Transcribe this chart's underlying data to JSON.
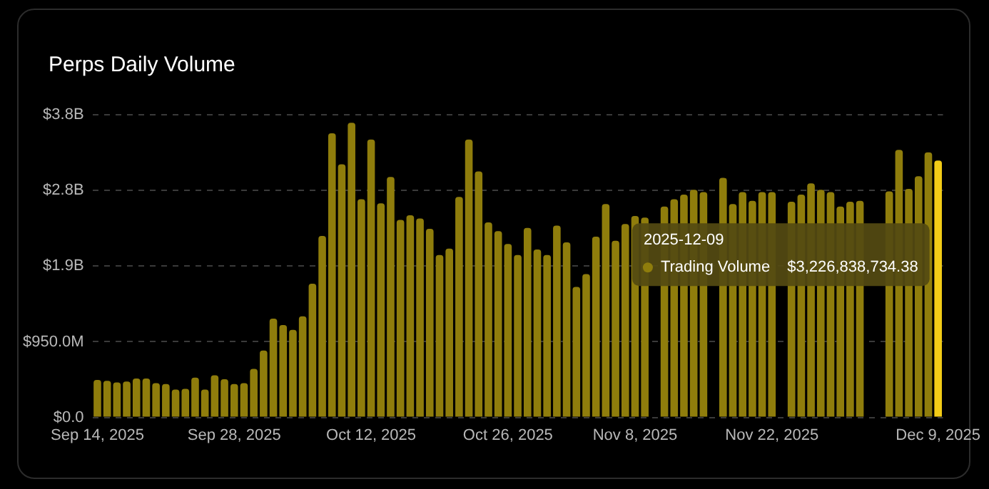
{
  "chart_data": {
    "type": "bar",
    "title": "Perps Daily Volume",
    "categories": [
      "Sep 14, 2025",
      null,
      null,
      null,
      null,
      null,
      null,
      null,
      null,
      null,
      null,
      null,
      null,
      null,
      "Sep 28, 2025",
      null,
      null,
      null,
      null,
      null,
      null,
      null,
      null,
      null,
      null,
      null,
      null,
      null,
      "Oct 12, 2025",
      null,
      null,
      null,
      null,
      null,
      null,
      null,
      null,
      null,
      null,
      null,
      null,
      null,
      "Oct 26, 2025",
      null,
      null,
      null,
      null,
      null,
      null,
      null,
      null,
      null,
      null,
      null,
      null,
      "Nov 8, 2025",
      null,
      null,
      null,
      null,
      null,
      null,
      null,
      null,
      null,
      null,
      null,
      null,
      null,
      "Nov 22, 2025",
      null,
      null,
      null,
      null,
      null,
      null,
      null,
      null,
      null,
      null,
      null,
      null,
      null,
      null,
      null,
      null,
      "Dec 9, 2025"
    ],
    "series": [
      {
        "name": "Trading Volume",
        "color": "#8f7d0c",
        "colors": [
          "#8f7d0c",
          "#8f7d0c",
          "#8f7d0c",
          "#8f7d0c",
          "#8f7d0c",
          "#8f7d0c",
          "#8f7d0c",
          "#8f7d0c",
          "#8f7d0c",
          "#8f7d0c",
          "#8f7d0c",
          "#8f7d0c",
          "#8f7d0c",
          "#8f7d0c",
          "#8f7d0c",
          "#8f7d0c",
          "#8f7d0c",
          "#8f7d0c",
          "#8f7d0c",
          "#8f7d0c",
          "#8f7d0c",
          "#8f7d0c",
          "#8f7d0c",
          "#8f7d0c",
          "#8f7d0c",
          "#8f7d0c",
          "#8f7d0c",
          "#8f7d0c",
          "#8f7d0c",
          "#8f7d0c",
          "#8f7d0c",
          "#8f7d0c",
          "#8f7d0c",
          "#8f7d0c",
          "#8f7d0c",
          "#8f7d0c",
          "#8f7d0c",
          "#8f7d0c",
          "#8f7d0c",
          "#8f7d0c",
          "#8f7d0c",
          "#8f7d0c",
          "#8f7d0c",
          "#8f7d0c",
          "#8f7d0c",
          "#8f7d0c",
          "#8f7d0c",
          "#8f7d0c",
          "#8f7d0c",
          "#8f7d0c",
          "#8f7d0c",
          "#8f7d0c",
          "#8f7d0c",
          "#8f7d0c",
          "#8f7d0c",
          "#8f7d0c",
          "#8f7d0c",
          "#8f7d0c",
          "#8f7d0c",
          "#8f7d0c",
          "#8f7d0c",
          "#8f7d0c",
          "#8f7d0c",
          "#8f7d0c",
          "#8f7d0c",
          "#8f7d0c",
          "#8f7d0c",
          "#8f7d0c",
          "#8f7d0c",
          "#8f7d0c",
          "#8f7d0c",
          "#8f7d0c",
          "#8f7d0c",
          "#8f7d0c",
          "#8f7d0c",
          "#8f7d0c",
          "#8f7d0c",
          "#8f7d0c",
          "#8f7d0c",
          "#8f7d0c",
          "#8f7d0c",
          "#8f7d0c",
          "#8f7d0c",
          "#8f7d0c",
          "#8f7d0c",
          "#8f7d0c",
          "#f3cc17"
        ],
        "values": [
          470000000,
          460000000,
          440000000,
          450000000,
          490000000,
          490000000,
          430000000,
          420000000,
          350000000,
          360000000,
          500000000,
          350000000,
          530000000,
          480000000,
          420000000,
          430000000,
          610000000,
          840000000,
          1240000000,
          1160000000,
          1100000000,
          1270000000,
          1680000000,
          2280000000,
          3570000000,
          3180000000,
          3700000000,
          2740000000,
          3490000000,
          2690000000,
          3020000000,
          2480000000,
          2540000000,
          2500000000,
          2370000000,
          2040000000,
          2120000000,
          2770000000,
          3490000000,
          3090000000,
          2450000000,
          2340000000,
          2180000000,
          2040000000,
          2380000000,
          2110000000,
          2040000000,
          2410000000,
          2200000000,
          1640000000,
          1800000000,
          2270000000,
          2680000000,
          2220000000,
          2430000000,
          2530000000,
          2510000000,
          null,
          2650000000,
          2740000000,
          2800000000,
          2860000000,
          2830000000,
          null,
          3010000000,
          2680000000,
          2830000000,
          2720000000,
          2830000000,
          2830000000,
          null,
          2710000000,
          2800000000,
          2940000000,
          2860000000,
          2830000000,
          2650000000,
          2710000000,
          2720000000,
          null,
          null,
          2840000000,
          3360000000,
          2870000000,
          3030000000,
          3330000000,
          3226838734.38
        ],
        "marker": "circle"
      }
    ],
    "annotations": [
      "2025-12-09",
      "$3,226,838,734.38"
    ],
    "ylim": [
      0,
      3800000000
    ],
    "yticks": [
      {
        "value": 0,
        "label": "$0.0"
      },
      {
        "value": 950000000,
        "label": "$950.0M"
      },
      {
        "value": 1900000000,
        "label": "$1.9B"
      },
      {
        "value": 2850000000,
        "label": "$2.8B"
      },
      {
        "value": 3800000000,
        "label": "$3.8B"
      }
    ],
    "grid": "y"
  }
}
